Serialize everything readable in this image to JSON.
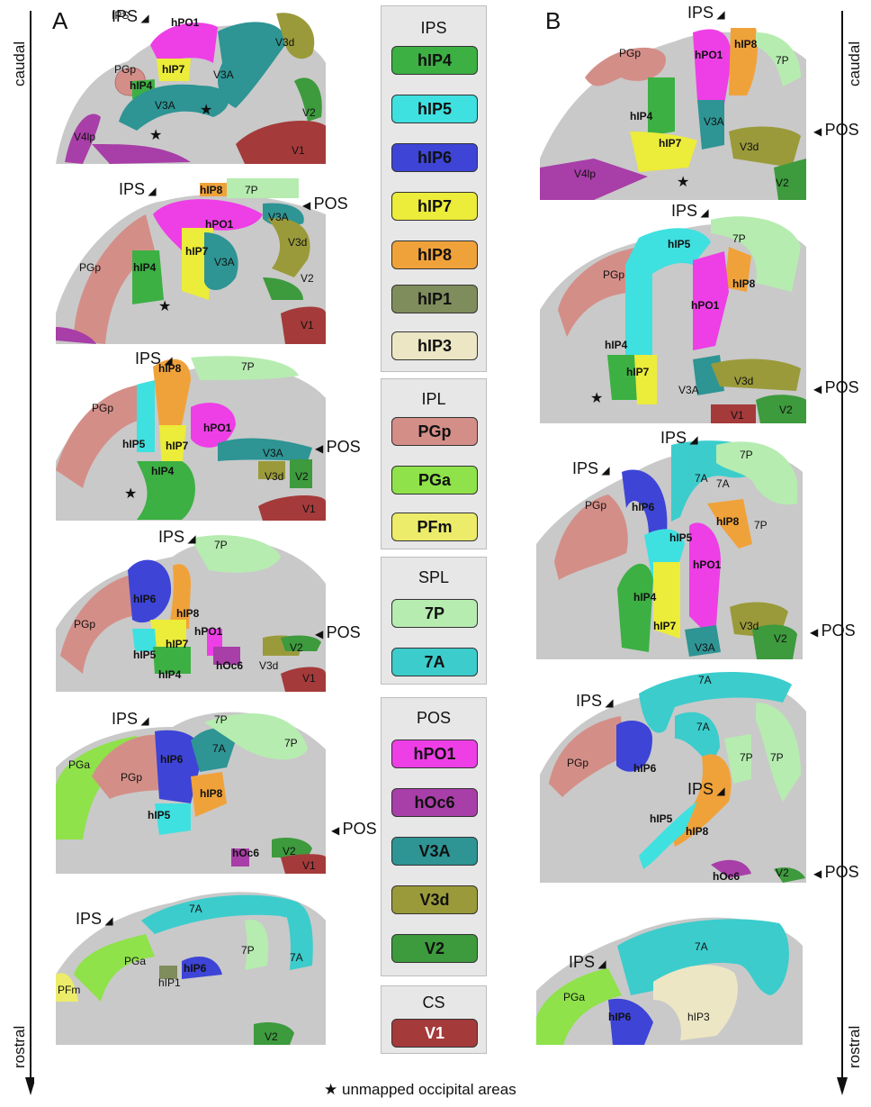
{
  "panels": {
    "a": "A",
    "b": "B"
  },
  "axis": {
    "top": "caudal",
    "bottom": "rostral"
  },
  "legend": {
    "groups": [
      {
        "title": "IPS",
        "items": [
          {
            "label": "hIP4",
            "color": "#3cb043"
          },
          {
            "label": "hIP5",
            "color": "#3fe0e0"
          },
          {
            "label": "hIP6",
            "color": "#3d44d6"
          },
          {
            "label": "hIP7",
            "color": "#ecec3a"
          },
          {
            "label": "hIP8",
            "color": "#f0a23a"
          },
          {
            "label": "hIP1",
            "color": "#7f8c5c"
          },
          {
            "label": "hIP3",
            "color": "#ece6c4"
          }
        ]
      },
      {
        "title": "IPL",
        "items": [
          {
            "label": "PGp",
            "color": "#d48e88"
          },
          {
            "label": "PGa",
            "color": "#8fe24a"
          },
          {
            "label": "PFm",
            "color": "#ecec6a"
          }
        ]
      },
      {
        "title": "SPL",
        "items": [
          {
            "label": "7P",
            "color": "#b6ecb0"
          },
          {
            "label": "7A",
            "color": "#3ccccc"
          }
        ]
      },
      {
        "title": "POS",
        "items": [
          {
            "label": "hPO1",
            "color": "#ee3ee6"
          },
          {
            "label": "hOc6",
            "color": "#a83ea8"
          },
          {
            "label": "V3A",
            "color": "#2e9494"
          },
          {
            "label": "V3d",
            "color": "#9a9a3a"
          },
          {
            "label": "V2",
            "color": "#3d9a3d"
          }
        ]
      },
      {
        "title": "CS",
        "items": [
          {
            "label": "V1",
            "color": "#a53a3a"
          }
        ]
      }
    ]
  },
  "marks": {
    "ips": "IPS",
    "pos": "POS",
    "star": "★"
  },
  "footnote": {
    "star": "★",
    "text": "unmapped occipital areas"
  },
  "slices": {
    "A": [
      {
        "labels": [
          "IPS",
          "hPO1",
          "hIP7",
          "hIP4",
          "PGp",
          "V3A",
          "V3A",
          "V3d",
          "V4lp",
          "V2",
          "V1"
        ]
      },
      {
        "labels": [
          "IPS",
          "hIP8",
          "7P",
          "POS",
          "hPO1",
          "V3A",
          "hIP7",
          "PGp",
          "hIP4",
          "V3A",
          "V3d",
          "V2",
          "V1"
        ]
      },
      {
        "labels": [
          "IPS",
          "hIP8",
          "7P",
          "PGp",
          "hPO1",
          "hIP5",
          "hIP7",
          "POS",
          "V3A",
          "hIP4",
          "V3d",
          "V2",
          "V1"
        ]
      },
      {
        "labels": [
          "IPS",
          "7P",
          "hIP6",
          "hIP8",
          "PGp",
          "hPO1",
          "POS",
          "hIP7",
          "V2",
          "hIP5",
          "hOc6",
          "V3d",
          "hIP4",
          "V1"
        ]
      },
      {
        "labels": [
          "IPS",
          "7P",
          "hIP6",
          "7A",
          "7P",
          "PGa",
          "PGp",
          "hIP8",
          "hIP5",
          "POS",
          "hOc6",
          "V2",
          "V1"
        ]
      },
      {
        "labels": [
          "7A",
          "IPS",
          "PGa",
          "hIP6",
          "7P",
          "7A",
          "hIP1",
          "PFm",
          "V2"
        ]
      }
    ],
    "B": [
      {
        "labels": [
          "IPS",
          "hIP8",
          "PGp",
          "hPO1",
          "7P",
          "hIP4",
          "V3A",
          "POS",
          "hIP7",
          "V3d",
          "V4lp",
          "V2"
        ]
      },
      {
        "labels": [
          "IPS",
          "hIP5",
          "7P",
          "PGp",
          "hIP8",
          "hPO1",
          "hIP4",
          "hIP7",
          "V3A",
          "V3d",
          "POS",
          "V1",
          "V2"
        ]
      },
      {
        "labels": [
          "IPS",
          "IPS",
          "7A",
          "7P",
          "7A",
          "hIP6",
          "PGp",
          "hIP8",
          "7P",
          "hIP5",
          "hPO1",
          "hIP4",
          "hIP7",
          "V3d",
          "POS",
          "V3A",
          "V2"
        ]
      },
      {
        "labels": [
          "7A",
          "IPS",
          "7A",
          "PGp",
          "hIP6",
          "7P",
          "7P",
          "IPS",
          "hIP5",
          "hIP8",
          "POS",
          "hOc6",
          "V2"
        ]
      },
      {
        "labels": [
          "IPS",
          "7A",
          "PGa",
          "hIP6",
          "hIP3"
        ]
      }
    ]
  }
}
